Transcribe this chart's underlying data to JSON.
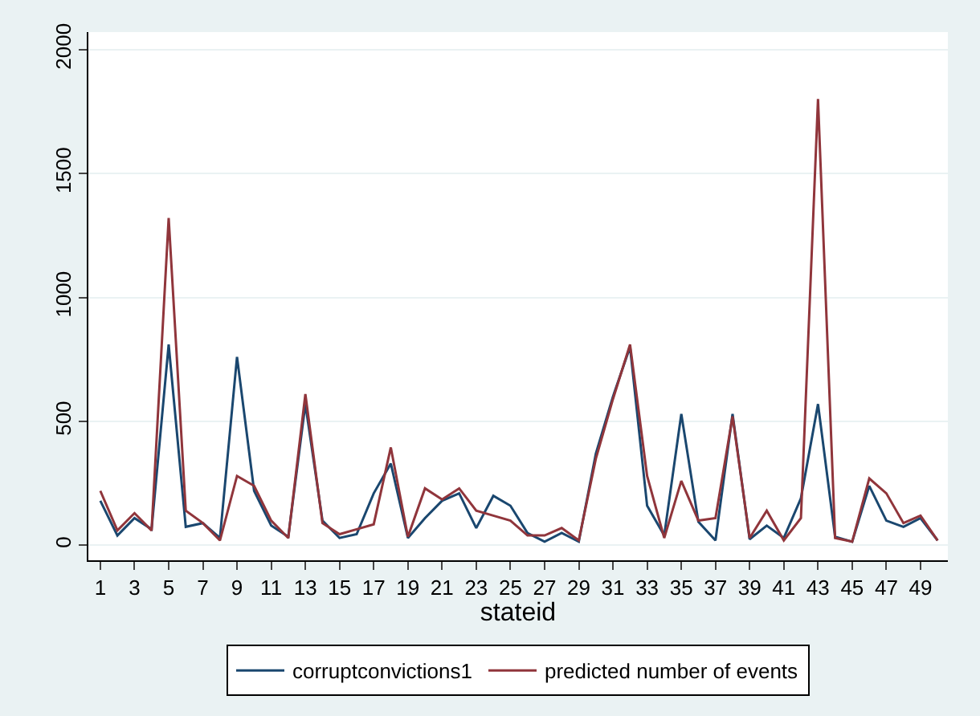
{
  "chart_data": {
    "type": "line",
    "xlabel": "stateid",
    "x": [
      1,
      2,
      3,
      4,
      5,
      6,
      7,
      8,
      9,
      10,
      11,
      12,
      13,
      14,
      15,
      16,
      17,
      18,
      19,
      20,
      21,
      22,
      23,
      24,
      25,
      26,
      27,
      28,
      29,
      30,
      31,
      32,
      33,
      34,
      35,
      36,
      37,
      38,
      39,
      40,
      41,
      42,
      43,
      44,
      45,
      46,
      47,
      48,
      49,
      50
    ],
    "series": [
      {
        "name": "corruptconvictions1",
        "color": "#1a476f",
        "values": [
          180,
          40,
          110,
          65,
          810,
          75,
          90,
          30,
          760,
          220,
          80,
          35,
          570,
          100,
          30,
          45,
          210,
          330,
          30,
          110,
          180,
          210,
          70,
          200,
          160,
          50,
          15,
          50,
          15,
          370,
          600,
          800,
          160,
          40,
          530,
          95,
          20,
          530,
          25,
          80,
          30,
          190,
          570,
          35,
          15,
          240,
          100,
          75,
          110,
          20
        ]
      },
      {
        "name": "predicted number of events",
        "color": "#90353b",
        "values": [
          220,
          60,
          130,
          60,
          1320,
          140,
          90,
          20,
          280,
          240,
          100,
          30,
          610,
          90,
          45,
          65,
          85,
          395,
          35,
          230,
          185,
          230,
          140,
          120,
          100,
          40,
          40,
          70,
          20,
          350,
          590,
          810,
          280,
          30,
          260,
          100,
          110,
          520,
          30,
          140,
          20,
          110,
          1800,
          30,
          15,
          270,
          210,
          90,
          120,
          20
        ]
      }
    ],
    "xlim": [
      0.3,
      50.6
    ],
    "xticks": [
      1,
      3,
      5,
      7,
      9,
      11,
      13,
      15,
      17,
      19,
      21,
      23,
      25,
      27,
      29,
      31,
      33,
      35,
      37,
      39,
      41,
      43,
      45,
      47,
      49
    ],
    "ylim": [
      -60,
      2070
    ],
    "yticks": [
      0,
      500,
      1000,
      1500,
      2000
    ],
    "grid": "y",
    "legend": "bottom",
    "line_style": "solid",
    "marker": "none"
  }
}
